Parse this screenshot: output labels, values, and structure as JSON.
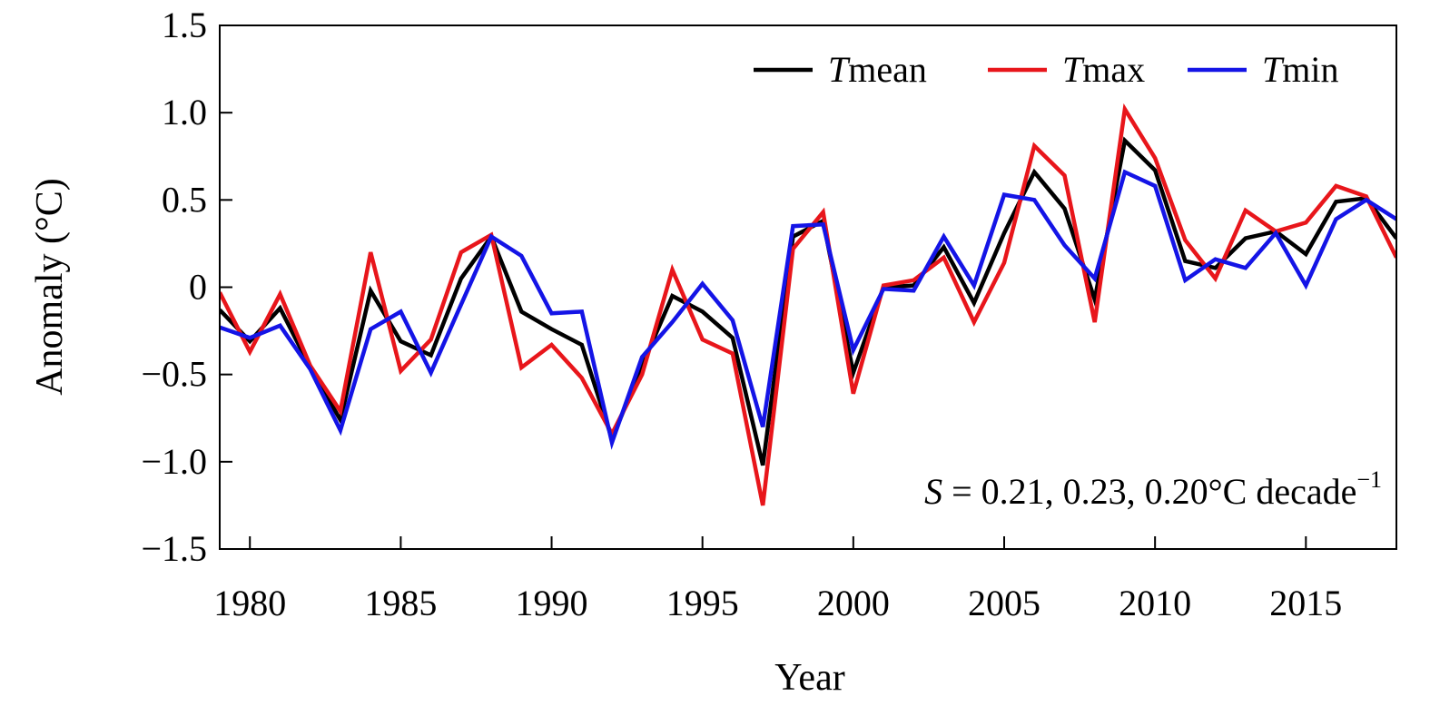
{
  "chart_data": {
    "type": "line",
    "xlabel": "Year",
    "ylabel": "Anomaly (°C)",
    "xlim": [
      1979,
      2018
    ],
    "ylim": [
      -1.5,
      1.5
    ],
    "xticks": [
      1980,
      1985,
      1990,
      1995,
      2000,
      2005,
      2010,
      2015
    ],
    "yticks": [
      -1.5,
      -1.0,
      -0.5,
      0,
      0.5,
      1.0,
      1.5
    ],
    "ytick_labels": [
      "−1.5",
      "−1.0",
      "−0.5",
      "0",
      "0.5",
      "1.0",
      "1.5"
    ],
    "legend_position": "top-right",
    "grid": false,
    "x": [
      1979,
      1980,
      1981,
      1982,
      1983,
      1984,
      1985,
      1986,
      1987,
      1988,
      1989,
      1990,
      1991,
      1992,
      1993,
      1994,
      1995,
      1996,
      1997,
      1998,
      1999,
      2000,
      2001,
      2002,
      2003,
      2004,
      2005,
      2006,
      2007,
      2008,
      2009,
      2010,
      2011,
      2012,
      2013,
      2014,
      2015,
      2016,
      2017,
      2018
    ],
    "series": [
      {
        "name_italic": "T",
        "name_rest": "mean",
        "color": "#000000",
        "values": [
          -0.13,
          -0.31,
          -0.12,
          -0.46,
          -0.76,
          -0.02,
          -0.31,
          -0.39,
          0.05,
          0.29,
          -0.14,
          -0.24,
          -0.33,
          -0.87,
          -0.45,
          -0.05,
          -0.14,
          -0.29,
          -1.02,
          0.29,
          0.38,
          -0.49,
          0.0,
          0.01,
          0.23,
          -0.09,
          0.31,
          0.66,
          0.45,
          -0.07,
          0.84,
          0.67,
          0.15,
          0.11,
          0.28,
          0.32,
          0.19,
          0.49,
          0.51,
          0.28
        ]
      },
      {
        "name_italic": "T",
        "name_rest": "max",
        "color": "#e8161b",
        "values": [
          -0.03,
          -0.37,
          -0.04,
          -0.45,
          -0.71,
          0.2,
          -0.48,
          -0.3,
          0.2,
          0.3,
          -0.46,
          -0.33,
          -0.52,
          -0.84,
          -0.5,
          0.1,
          -0.3,
          -0.38,
          -1.25,
          0.22,
          0.43,
          -0.61,
          0.01,
          0.04,
          0.17,
          -0.2,
          0.14,
          0.81,
          0.64,
          -0.2,
          1.02,
          0.74,
          0.27,
          0.05,
          0.44,
          0.32,
          0.37,
          0.58,
          0.52,
          0.17
        ]
      },
      {
        "name_italic": "T",
        "name_rest": "min",
        "color": "#1414e6",
        "values": [
          -0.23,
          -0.29,
          -0.22,
          -0.47,
          -0.82,
          -0.24,
          -0.14,
          -0.49,
          -0.1,
          0.29,
          0.18,
          -0.15,
          -0.14,
          -0.89,
          -0.4,
          -0.2,
          0.02,
          -0.19,
          -0.8,
          0.35,
          0.36,
          -0.36,
          -0.01,
          -0.02,
          0.29,
          0.01,
          0.53,
          0.5,
          0.24,
          0.05,
          0.66,
          0.58,
          0.04,
          0.16,
          0.11,
          0.31,
          0.01,
          0.39,
          0.5,
          0.39
        ]
      }
    ],
    "annotation": {
      "italic": "S",
      "text": " = 0.21, 0.23, 0.20°C decade",
      "superscript": "−1"
    }
  }
}
